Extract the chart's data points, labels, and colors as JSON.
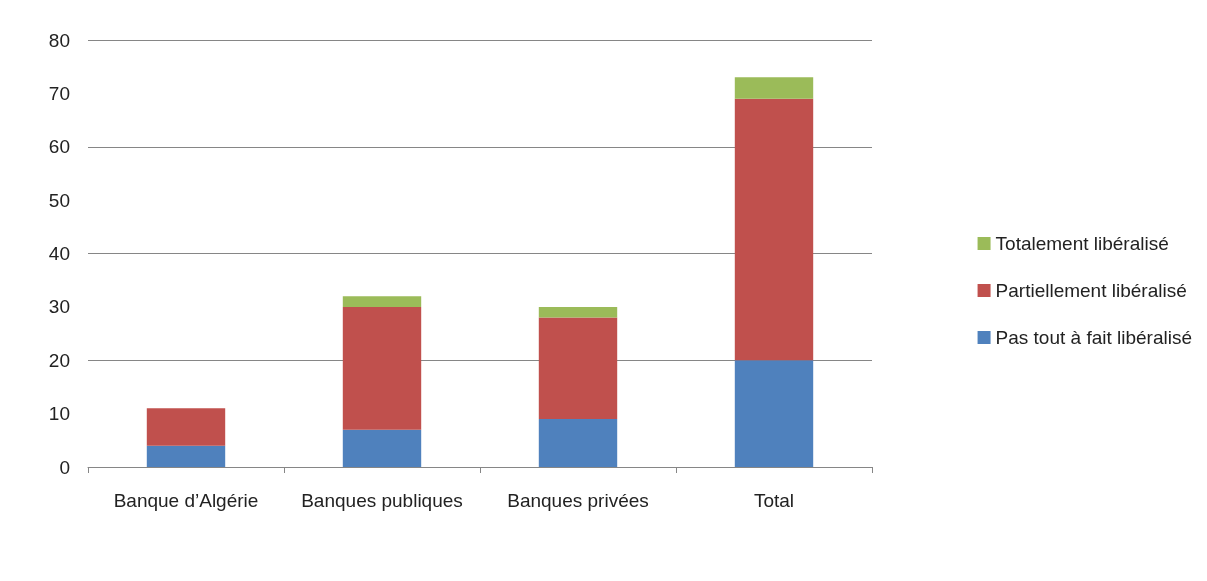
{
  "chart_data": {
    "type": "bar",
    "stacked": true,
    "categories": [
      "Banque d’Algérie",
      "Banques publiques",
      "Banques privées",
      "Total"
    ],
    "series": [
      {
        "name": "Pas tout à fait libéralisé",
        "color": "#4f81bd",
        "values": [
          4,
          7,
          9,
          20
        ]
      },
      {
        "name": "Partiellement libéralisé",
        "color": "#c0504d",
        "values": [
          7,
          23,
          19,
          49
        ]
      },
      {
        "name": "Totalement libéralisé",
        "color": "#9bbb59",
        "values": [
          0,
          2,
          2,
          4
        ]
      }
    ],
    "ylim": [
      0,
      80
    ],
    "yticks": [
      0,
      10,
      20,
      30,
      40,
      50,
      60,
      70,
      80
    ],
    "grid": "y",
    "legend": "right"
  }
}
